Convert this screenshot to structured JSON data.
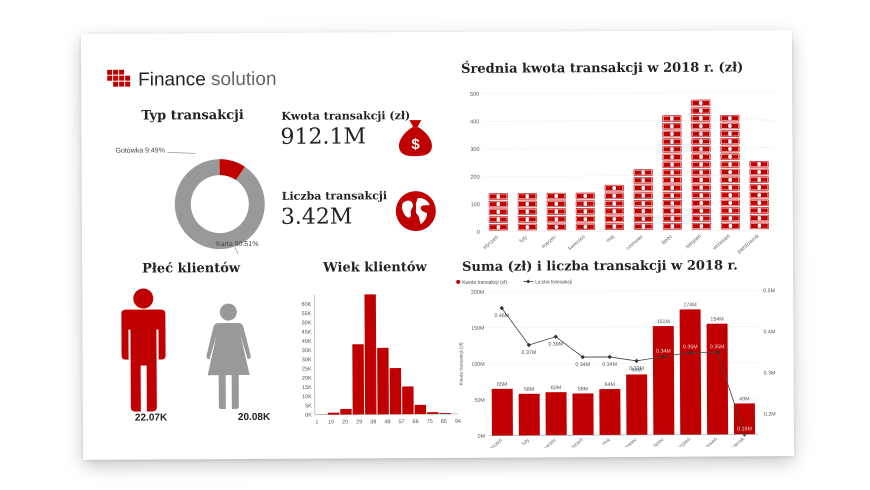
{
  "brand": {
    "name_part1": "Finance",
    "name_part2": " solution"
  },
  "transaction_type": {
    "title": "Typ transakcji",
    "label_cash": "Gotówka 9.49%",
    "label_card": "Karta 90.51%"
  },
  "kpi": {
    "amount_label": "Kwota transakcji (zł)",
    "amount_value": "912.1M",
    "count_label": "Liczba transakcji",
    "count_value": "3.42M"
  },
  "gender": {
    "title": "Płeć klientów",
    "male_value": "22.07K",
    "female_value": "20.08K"
  },
  "colors": {
    "accent": "#c00000",
    "grey": "#999999"
  },
  "icons": [
    "money-bag-icon",
    "globe-icon",
    "male-icon",
    "female-icon",
    "banknote-icon"
  ],
  "chart_data": [
    {
      "type": "pie",
      "title": "Typ transakcji",
      "categories": [
        "Gotówka",
        "Karta"
      ],
      "values": [
        9.49,
        90.51
      ]
    },
    {
      "type": "bar",
      "title": "Wiek klientów",
      "x": [
        10,
        20,
        25,
        30,
        35,
        45,
        55,
        65,
        75,
        85
      ],
      "values": [
        1000,
        3000,
        38000,
        65000,
        36000,
        25000,
        15000,
        5000,
        1000,
        500
      ],
      "xticks": [
        "1",
        "10",
        "20",
        "29",
        "38",
        "48",
        "57",
        "66",
        "75",
        "85",
        "94"
      ],
      "yticks": [
        "0K",
        "5K",
        "10K",
        "15K",
        "20K",
        "25K",
        "30K",
        "35K",
        "40K",
        "45K",
        "50K",
        "55K",
        "60K"
      ],
      "ylim": [
        0,
        65000
      ]
    },
    {
      "type": "bar",
      "title": "Średnia kwota transakcji w 2018 r. (zł)",
      "categories": [
        "styczeń",
        "luty",
        "marzec",
        "kwiecień",
        "maj",
        "czerwiec",
        "lipiec",
        "sierpień",
        "wrzesień",
        "październik"
      ],
      "values": [
        138,
        144,
        144,
        154,
        185,
        240,
        440,
        490,
        440,
        275
      ],
      "yticks": [
        "0",
        "100",
        "200",
        "300",
        "400",
        "500"
      ],
      "ylim": [
        0,
        500
      ]
    },
    {
      "type": "bar",
      "title": "Suma (zł) i liczba transakcji w 2018 r.",
      "categories": [
        "styczeń",
        "luty",
        "marzec",
        "kwiecień",
        "maj",
        "czerwiec",
        "lipiec",
        "sierpień",
        "wrzesień",
        "październik"
      ],
      "legend": [
        "Kwota transakcji (zł)",
        "Liczba transakcji"
      ],
      "ylabel": "Kwota transakcji (zł)",
      "series": [
        {
          "name": "Kwota transakcji (zł)",
          "values": [
            65,
            58,
            60,
            58,
            64,
            84,
            151,
            174,
            154,
            43
          ],
          "labels": [
            "65M",
            "58M",
            "60M",
            "58M",
            "64M",
            "84M",
            "151M",
            "174M",
            "154M",
            "43M"
          ]
        },
        {
          "name": "Liczba transakcji",
          "values": [
            0.46,
            0.37,
            0.39,
            0.34,
            0.34,
            0.33,
            0.34,
            0.35,
            0.35,
            0.15
          ],
          "labels": [
            "0.46M",
            "0.37M",
            "0.39M",
            "0.34M",
            "0.34M",
            "0.33M",
            "0.34M",
            "0.35M",
            "0.35M",
            "0.15M"
          ]
        }
      ],
      "yticks_left": [
        "0M",
        "50M",
        "100M",
        "150M",
        "200M"
      ],
      "ylim_left": [
        0,
        200
      ],
      "yticks_right": [
        "0.2M",
        "0.3M",
        "0.4M",
        "0.5M"
      ],
      "ylim_right": [
        0.15,
        0.5
      ]
    }
  ]
}
